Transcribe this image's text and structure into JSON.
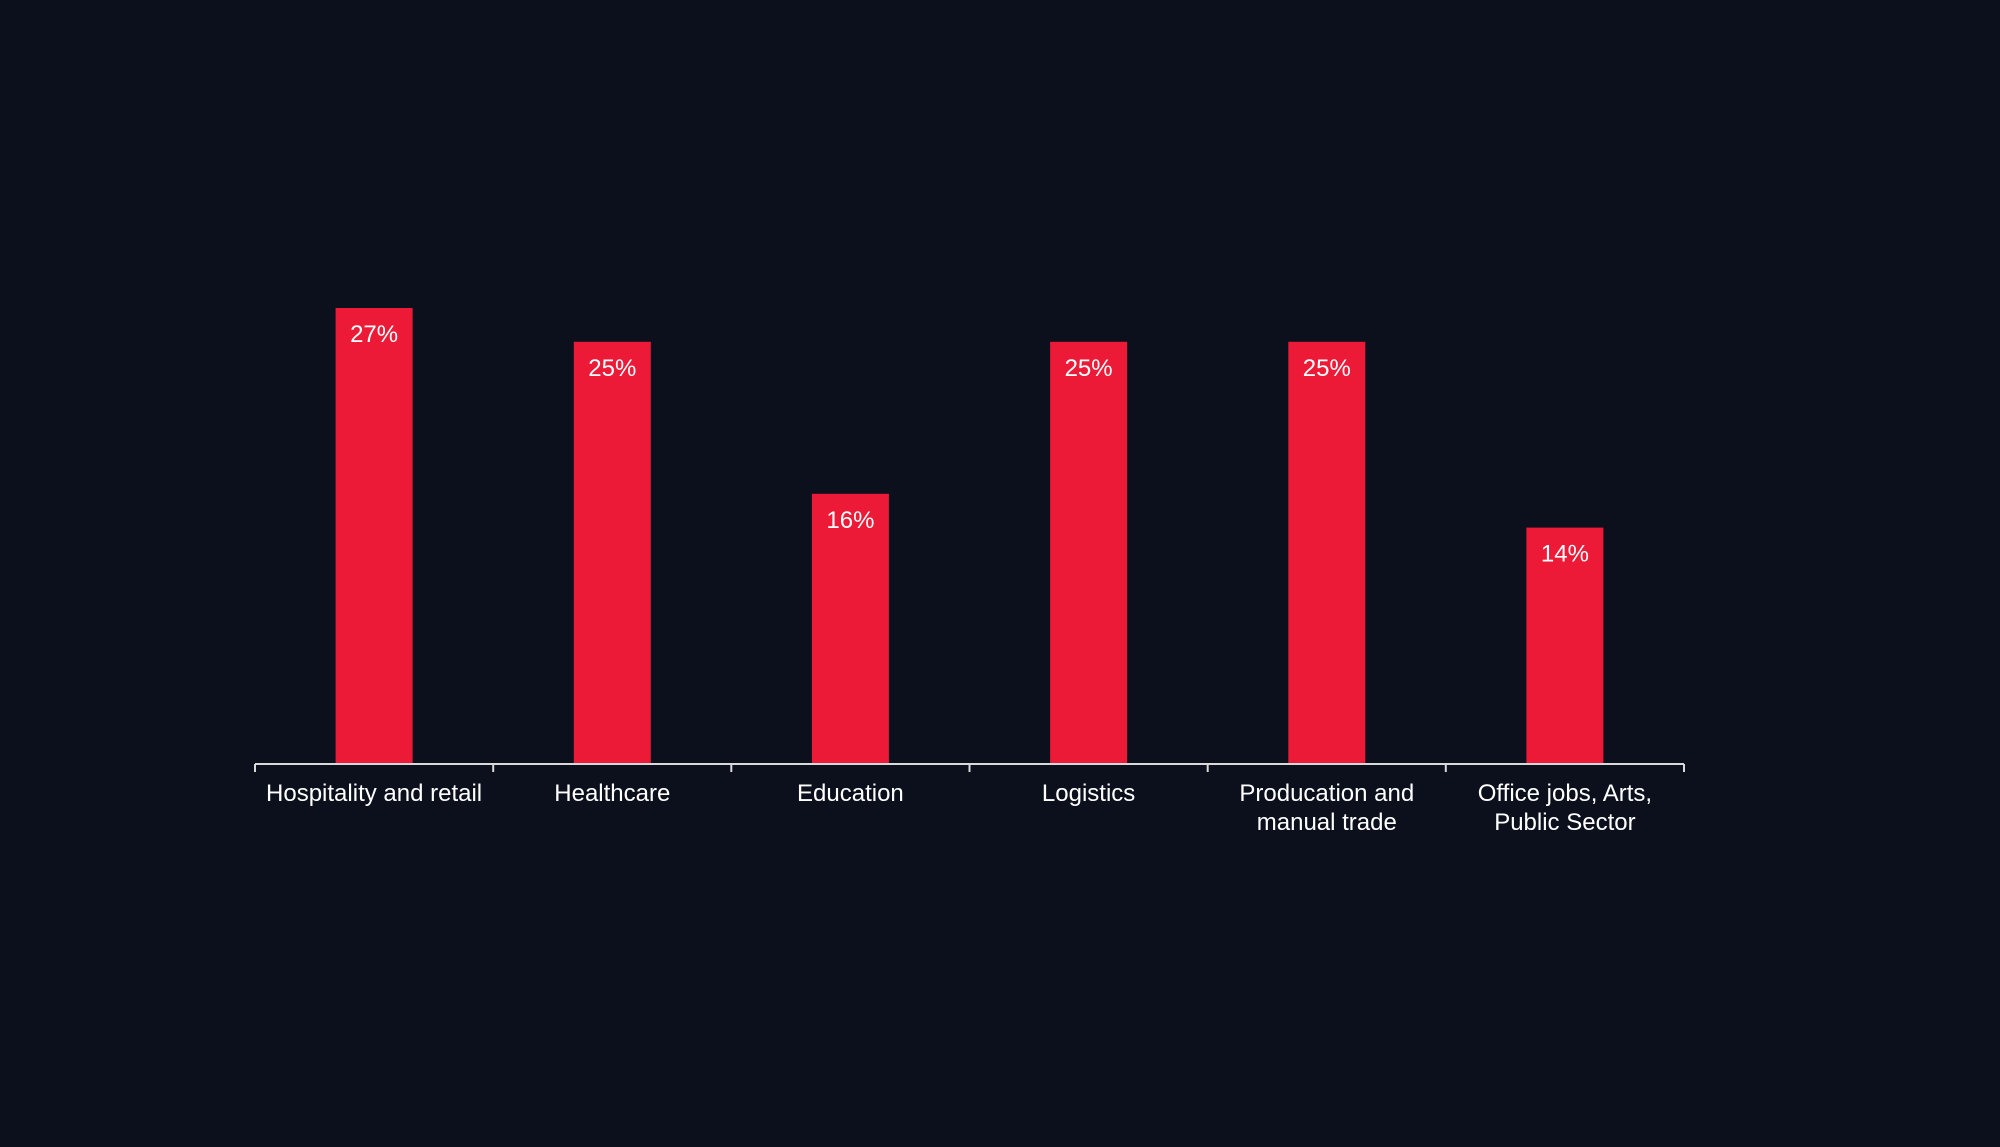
{
  "chart_data": {
    "type": "bar",
    "categories": [
      [
        "Hospitality and retail"
      ],
      [
        "Healthcare"
      ],
      [
        "Education"
      ],
      [
        "Logistics"
      ],
      [
        "Producation and",
        "manual trade"
      ],
      [
        "Office jobs, Arts,",
        "Public Sector"
      ]
    ],
    "values": [
      27,
      25,
      16,
      25,
      25,
      14
    ],
    "value_labels": [
      "27%",
      "25%",
      "16%",
      "25%",
      "25%",
      "14%"
    ],
    "unit": "%",
    "title": "",
    "xlabel": "",
    "ylabel": "",
    "grid": false,
    "legend": "none"
  },
  "colors": {
    "background": "#0b101c",
    "bar": "#ec1a37",
    "axis": "#d9d9d9",
    "text": "#ffffff"
  }
}
